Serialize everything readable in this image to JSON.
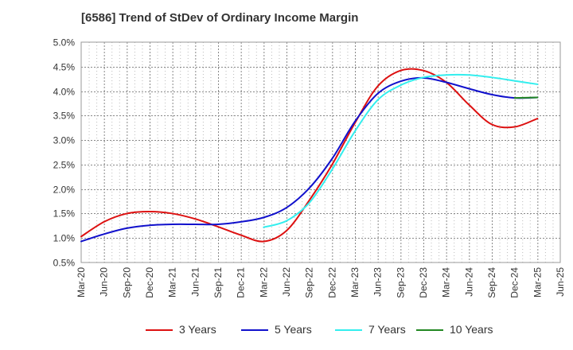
{
  "chart_data": {
    "type": "line",
    "title": "[6586]  Trend of StDev of Ordinary Income Margin",
    "xlabel": "",
    "ylabel": "",
    "x_tick_labels": [
      "Mar-20",
      "Jun-20",
      "Sep-20",
      "Dec-20",
      "Mar-21",
      "Jun-21",
      "Sep-21",
      "Dec-21",
      "Mar-22",
      "Jun-22",
      "Sep-22",
      "Dec-22",
      "Mar-23",
      "Jun-23",
      "Sep-23",
      "Dec-23",
      "Mar-24",
      "Jun-24",
      "Sep-24",
      "Dec-24",
      "Mar-25",
      "Jun-25"
    ],
    "y_tick_labels": [
      "0.5%",
      "1.0%",
      "1.5%",
      "2.0%",
      "2.5%",
      "3.0%",
      "3.5%",
      "4.0%",
      "4.5%",
      "5.0%"
    ],
    "y_ticks": [
      0.5,
      1.0,
      1.5,
      2.0,
      2.5,
      3.0,
      3.5,
      4.0,
      4.5,
      5.0
    ],
    "ylim": [
      0.5,
      5.0
    ],
    "grid": true,
    "legend_position": "bottom",
    "series": [
      {
        "name": "3 Years",
        "color": "#dd1111",
        "x": [
          "Mar-20",
          "Jun-20",
          "Sep-20",
          "Dec-20",
          "Mar-21",
          "Jun-21",
          "Sep-21",
          "Dec-21",
          "Mar-22",
          "Jun-22",
          "Sep-22",
          "Dec-22",
          "Mar-23",
          "Jun-23",
          "Sep-23",
          "Dec-23",
          "Mar-24",
          "Jun-24",
          "Sep-24",
          "Dec-24",
          "Mar-25"
        ],
        "values": [
          1.03,
          1.33,
          1.5,
          1.54,
          1.5,
          1.39,
          1.23,
          1.06,
          0.93,
          1.15,
          1.77,
          2.5,
          3.35,
          4.1,
          4.42,
          4.42,
          4.18,
          3.72,
          3.32,
          3.27,
          3.44
        ]
      },
      {
        "name": "5 Years",
        "color": "#1111cc",
        "x": [
          "Mar-20",
          "Jun-20",
          "Sep-20",
          "Dec-20",
          "Mar-21",
          "Jun-21",
          "Sep-21",
          "Dec-21",
          "Mar-22",
          "Jun-22",
          "Sep-22",
          "Dec-22",
          "Mar-23",
          "Jun-23",
          "Sep-23",
          "Dec-23",
          "Mar-24",
          "Jun-24",
          "Sep-24",
          "Dec-24",
          "Mar-25"
        ],
        "values": [
          0.93,
          1.08,
          1.2,
          1.26,
          1.28,
          1.28,
          1.28,
          1.33,
          1.42,
          1.62,
          2.02,
          2.62,
          3.38,
          3.95,
          4.2,
          4.27,
          4.18,
          4.05,
          3.93,
          3.86,
          3.87
        ]
      },
      {
        "name": "7 Years",
        "color": "#33eeee",
        "x": [
          "Mar-22",
          "Jun-22",
          "Sep-22",
          "Dec-22",
          "Mar-23",
          "Jun-23",
          "Sep-23",
          "Dec-23",
          "Mar-24",
          "Jun-24",
          "Sep-24",
          "Dec-24",
          "Mar-25"
        ],
        "values": [
          1.22,
          1.35,
          1.72,
          2.4,
          3.18,
          3.82,
          4.12,
          4.28,
          4.33,
          4.33,
          4.28,
          4.21,
          4.14
        ]
      },
      {
        "name": "10 Years",
        "color": "#228822",
        "x": [
          "Dec-24",
          "Mar-25"
        ],
        "values": [
          3.86,
          3.87
        ]
      }
    ]
  }
}
